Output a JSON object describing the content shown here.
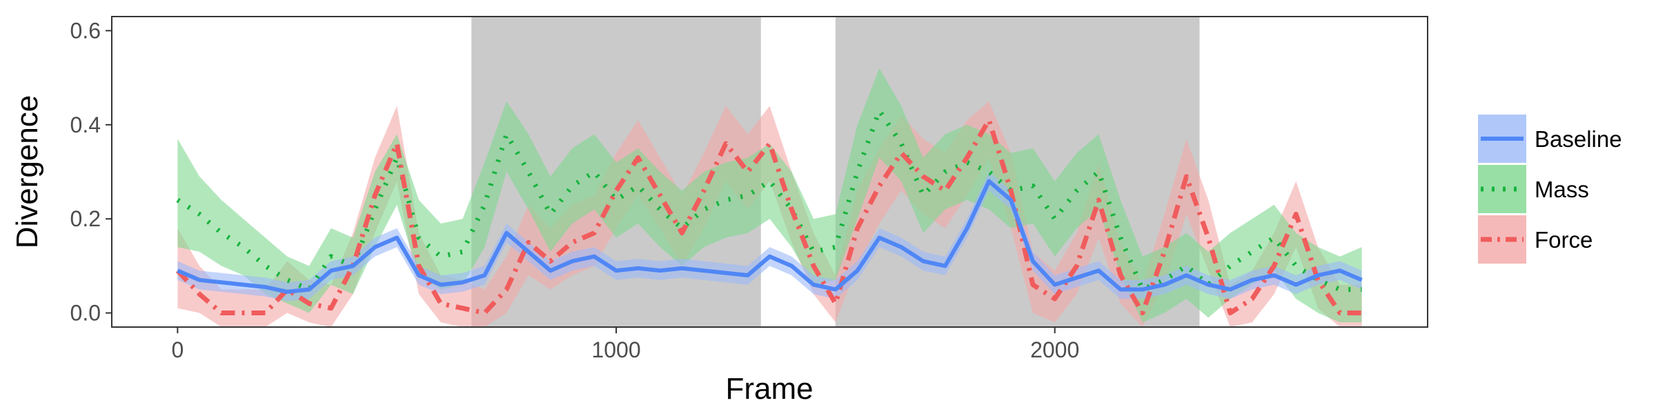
{
  "chart_data": {
    "type": "line",
    "title": "",
    "xlabel": "Frame",
    "ylabel": "Divergence",
    "xlim": [
      -150,
      2850
    ],
    "ylim": [
      -0.03,
      0.63
    ],
    "x_ticks": [
      0,
      1000,
      2000
    ],
    "x_tick_labels": [
      "0",
      "1000",
      "2000"
    ],
    "y_ticks": [
      0.0,
      0.2,
      0.4,
      0.6
    ],
    "y_tick_labels": [
      "0.0",
      "0.2",
      "0.4",
      "0.6"
    ],
    "grid": false,
    "legend_position": "right",
    "shaded_regions": [
      {
        "x_start": 670,
        "x_end": 1330
      },
      {
        "x_start": 1500,
        "x_end": 2330
      }
    ],
    "shaded_color": "#cacaca",
    "x": [
      0,
      50,
      100,
      150,
      200,
      250,
      300,
      350,
      400,
      450,
      500,
      550,
      600,
      650,
      700,
      750,
      800,
      850,
      900,
      950,
      1000,
      1050,
      1100,
      1150,
      1200,
      1250,
      1300,
      1350,
      1400,
      1450,
      1500,
      1550,
      1600,
      1650,
      1700,
      1750,
      1800,
      1850,
      1900,
      1950,
      2000,
      2050,
      2100,
      2150,
      2200,
      2250,
      2300,
      2350,
      2400,
      2450,
      2500,
      2550,
      2600,
      2650,
      2700
    ],
    "series": [
      {
        "name": "Baseline",
        "color": "#5087f5",
        "band_color": "#9cb9f9",
        "dash": "solid",
        "values": [
          0.09,
          0.07,
          0.065,
          0.06,
          0.055,
          0.045,
          0.05,
          0.09,
          0.1,
          0.14,
          0.16,
          0.08,
          0.06,
          0.065,
          0.08,
          0.17,
          0.13,
          0.09,
          0.11,
          0.12,
          0.09,
          0.095,
          0.09,
          0.095,
          0.09,
          0.085,
          0.08,
          0.12,
          0.1,
          0.06,
          0.05,
          0.09,
          0.16,
          0.14,
          0.11,
          0.1,
          0.18,
          0.28,
          0.24,
          0.11,
          0.06,
          0.075,
          0.09,
          0.05,
          0.05,
          0.06,
          0.08,
          0.06,
          0.05,
          0.07,
          0.08,
          0.06,
          0.08,
          0.09,
          0.07
        ],
        "lower": [
          0.07,
          0.05,
          0.045,
          0.04,
          0.035,
          0.025,
          0.03,
          0.07,
          0.08,
          0.12,
          0.14,
          0.06,
          0.04,
          0.045,
          0.06,
          0.15,
          0.11,
          0.07,
          0.09,
          0.1,
          0.07,
          0.075,
          0.07,
          0.075,
          0.07,
          0.065,
          0.06,
          0.1,
          0.08,
          0.04,
          0.03,
          0.07,
          0.14,
          0.12,
          0.09,
          0.08,
          0.16,
          0.26,
          0.22,
          0.09,
          0.04,
          0.055,
          0.07,
          0.03,
          0.03,
          0.04,
          0.06,
          0.04,
          0.03,
          0.05,
          0.06,
          0.04,
          0.06,
          0.07,
          0.05
        ],
        "upper": [
          0.11,
          0.09,
          0.085,
          0.08,
          0.075,
          0.065,
          0.07,
          0.11,
          0.12,
          0.16,
          0.18,
          0.1,
          0.08,
          0.085,
          0.1,
          0.19,
          0.15,
          0.11,
          0.13,
          0.14,
          0.11,
          0.115,
          0.11,
          0.115,
          0.11,
          0.105,
          0.1,
          0.14,
          0.12,
          0.08,
          0.07,
          0.11,
          0.18,
          0.16,
          0.13,
          0.12,
          0.2,
          0.3,
          0.26,
          0.13,
          0.08,
          0.095,
          0.11,
          0.07,
          0.07,
          0.08,
          0.1,
          0.08,
          0.07,
          0.09,
          0.1,
          0.08,
          0.1,
          0.11,
          0.09
        ]
      },
      {
        "name": "Mass",
        "color": "#16b33c",
        "band_color": "#7ed78f",
        "dash": "dotted",
        "values": [
          0.24,
          0.21,
          0.17,
          0.14,
          0.1,
          0.07,
          0.05,
          0.12,
          0.1,
          0.22,
          0.33,
          0.16,
          0.12,
          0.13,
          0.23,
          0.38,
          0.3,
          0.21,
          0.27,
          0.3,
          0.24,
          0.27,
          0.22,
          0.18,
          0.22,
          0.24,
          0.25,
          0.28,
          0.22,
          0.13,
          0.14,
          0.3,
          0.43,
          0.36,
          0.25,
          0.3,
          0.32,
          0.3,
          0.26,
          0.27,
          0.2,
          0.26,
          0.3,
          0.16,
          0.05,
          0.07,
          0.1,
          0.06,
          0.1,
          0.13,
          0.16,
          0.1,
          0.07,
          0.05,
          0.05
        ],
        "lower": [
          0.14,
          0.13,
          0.1,
          0.08,
          0.04,
          0.02,
          0.0,
          0.06,
          0.04,
          0.14,
          0.23,
          0.08,
          0.05,
          0.06,
          0.14,
          0.3,
          0.22,
          0.13,
          0.19,
          0.22,
          0.16,
          0.19,
          0.14,
          0.1,
          0.14,
          0.16,
          0.17,
          0.2,
          0.14,
          0.06,
          0.07,
          0.2,
          0.33,
          0.28,
          0.17,
          0.22,
          0.24,
          0.22,
          0.18,
          0.19,
          0.12,
          0.18,
          0.22,
          0.08,
          -0.02,
          0.0,
          0.03,
          -0.01,
          0.03,
          0.06,
          0.09,
          0.03,
          0.0,
          -0.02,
          -0.02
        ],
        "upper": [
          0.37,
          0.29,
          0.24,
          0.2,
          0.16,
          0.12,
          0.1,
          0.18,
          0.16,
          0.3,
          0.38,
          0.24,
          0.19,
          0.2,
          0.32,
          0.45,
          0.38,
          0.29,
          0.35,
          0.38,
          0.32,
          0.35,
          0.3,
          0.26,
          0.3,
          0.32,
          0.33,
          0.36,
          0.3,
          0.2,
          0.21,
          0.4,
          0.52,
          0.44,
          0.33,
          0.38,
          0.4,
          0.38,
          0.34,
          0.35,
          0.28,
          0.34,
          0.38,
          0.24,
          0.12,
          0.14,
          0.17,
          0.13,
          0.17,
          0.2,
          0.23,
          0.17,
          0.14,
          0.12,
          0.14
        ]
      },
      {
        "name": "Force",
        "color": "#f05c5c",
        "band_color": "#f4a8a8",
        "dash": "dashdot",
        "values": [
          0.09,
          0.04,
          0.0,
          0.0,
          0.0,
          0.05,
          0.02,
          0.01,
          0.1,
          0.25,
          0.36,
          0.1,
          0.02,
          0.01,
          0.0,
          0.05,
          0.15,
          0.11,
          0.15,
          0.17,
          0.26,
          0.33,
          0.25,
          0.17,
          0.26,
          0.36,
          0.3,
          0.36,
          0.22,
          0.1,
          0.02,
          0.18,
          0.27,
          0.34,
          0.29,
          0.26,
          0.33,
          0.41,
          0.26,
          0.06,
          0.03,
          0.1,
          0.24,
          0.08,
          0.0,
          0.13,
          0.29,
          0.16,
          0.0,
          0.03,
          0.1,
          0.21,
          0.07,
          0.0,
          0.0
        ],
        "lower": [
          0.01,
          0.0,
          -0.03,
          -0.03,
          -0.03,
          0.0,
          -0.02,
          -0.03,
          0.04,
          0.17,
          0.28,
          0.04,
          -0.02,
          -0.03,
          -0.03,
          0.0,
          0.08,
          0.05,
          0.08,
          0.1,
          0.18,
          0.25,
          0.18,
          0.1,
          0.18,
          0.28,
          0.22,
          0.28,
          0.15,
          0.04,
          -0.02,
          0.1,
          0.19,
          0.26,
          0.21,
          0.18,
          0.25,
          0.33,
          0.18,
          0.0,
          -0.02,
          0.04,
          0.16,
          0.02,
          -0.03,
          0.06,
          0.21,
          0.09,
          -0.03,
          -0.02,
          0.04,
          0.14,
          0.01,
          -0.03,
          -0.03
        ],
        "upper": [
          0.18,
          0.1,
          0.05,
          0.05,
          0.05,
          0.11,
          0.07,
          0.06,
          0.17,
          0.33,
          0.44,
          0.17,
          0.08,
          0.07,
          0.05,
          0.12,
          0.23,
          0.18,
          0.23,
          0.25,
          0.34,
          0.41,
          0.33,
          0.25,
          0.34,
          0.44,
          0.38,
          0.44,
          0.3,
          0.17,
          0.08,
          0.26,
          0.35,
          0.42,
          0.37,
          0.34,
          0.41,
          0.45,
          0.34,
          0.13,
          0.09,
          0.17,
          0.32,
          0.15,
          0.06,
          0.21,
          0.37,
          0.24,
          0.06,
          0.09,
          0.17,
          0.28,
          0.14,
          0.06,
          0.06
        ]
      }
    ]
  }
}
